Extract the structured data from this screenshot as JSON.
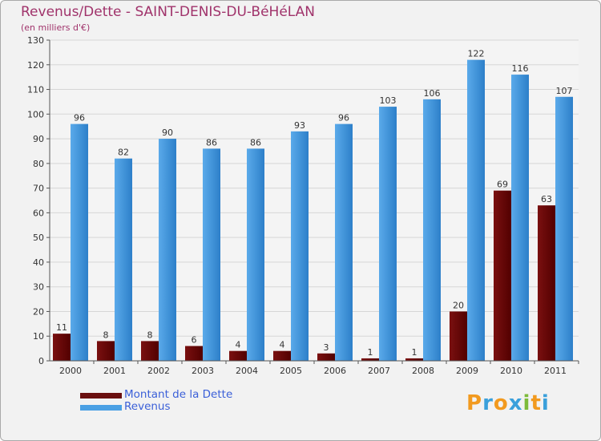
{
  "title": "Revenus/Dette - SAINT-DENIS-DU-BéHéLAN",
  "subtitle": "(en milliers d'€)",
  "colors": {
    "dette_top": "#7a1010",
    "dette_bottom": "#520000",
    "revenus_top": "#5aaaea",
    "revenus_bottom": "#2d7fc9",
    "title": "#a0336b",
    "legend_text": "#3a5fd8",
    "axis_text": "#333333",
    "grid": "#d6d6d6"
  },
  "legend": [
    {
      "label": "Montant de la Dette",
      "color": "#6a0f0f"
    },
    {
      "label": "Revenus",
      "color": "#4aa0e4"
    }
  ],
  "logo": {
    "letters": [
      "P",
      "r",
      "o",
      "x",
      "i",
      "t",
      "i"
    ],
    "colors": [
      "#f29a1f",
      "#3aa0db",
      "#f29a1f",
      "#3aa0db",
      "#7dbb3a",
      "#f29a1f",
      "#3aa0db"
    ]
  },
  "chart_data": {
    "type": "bar",
    "categories": [
      "2000",
      "2001",
      "2002",
      "2003",
      "2004",
      "2005",
      "2006",
      "2007",
      "2008",
      "2009",
      "2010",
      "2011"
    ],
    "series": [
      {
        "name": "Montant de la Dette",
        "values": [
          11,
          8,
          8,
          6,
          4,
          4,
          3,
          1,
          1,
          20,
          69,
          63
        ]
      },
      {
        "name": "Revenus",
        "values": [
          96,
          82,
          90,
          86,
          86,
          93,
          96,
          103,
          106,
          122,
          116,
          107
        ]
      }
    ],
    "ylim": [
      0,
      130
    ],
    "yticks": [
      0,
      10,
      20,
      30,
      40,
      50,
      60,
      70,
      80,
      90,
      100,
      110,
      120,
      130
    ],
    "grid": true,
    "legend_position": "bottom-left"
  }
}
